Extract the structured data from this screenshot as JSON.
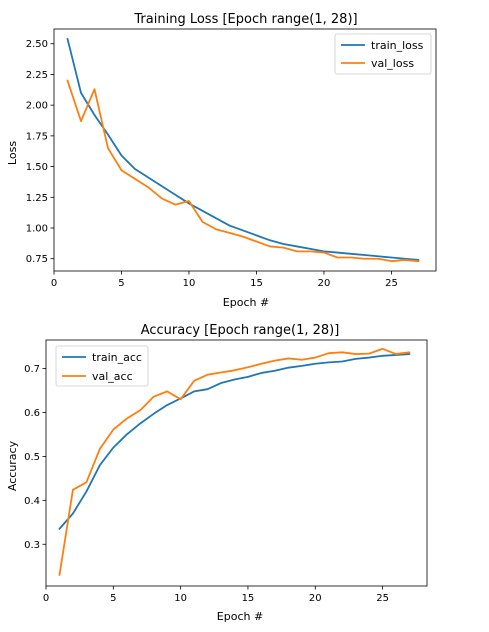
{
  "chart_data": [
    {
      "type": "line",
      "title": "Training Loss [Epoch range(1, 28)]",
      "xlabel": "Epoch #",
      "ylabel": "Loss",
      "xlim": [
        0,
        28.3
      ],
      "ylim": [
        0.65,
        2.62
      ],
      "xticks": [
        0,
        5,
        10,
        15,
        20,
        25
      ],
      "yticks": [
        0.75,
        1.0,
        1.25,
        1.5,
        1.75,
        2.0,
        2.25,
        2.5
      ],
      "ytick_labels": [
        "0.75",
        "1.00",
        "1.25",
        "1.50",
        "1.75",
        "2.00",
        "2.25",
        "2.50"
      ],
      "legend_position": "upper right",
      "grid": false,
      "x": [
        1,
        2,
        3,
        4,
        5,
        6,
        7,
        8,
        9,
        10,
        11,
        12,
        13,
        14,
        15,
        16,
        17,
        18,
        19,
        20,
        21,
        22,
        23,
        24,
        25,
        26,
        27
      ],
      "series": [
        {
          "name": "train_loss",
          "color": "#1f77b4",
          "values": [
            2.54,
            2.1,
            1.92,
            1.76,
            1.59,
            1.48,
            1.41,
            1.34,
            1.27,
            1.2,
            1.14,
            1.08,
            1.02,
            0.98,
            0.94,
            0.9,
            0.87,
            0.85,
            0.83,
            0.81,
            0.8,
            0.79,
            0.78,
            0.77,
            0.76,
            0.75,
            0.74
          ]
        },
        {
          "name": "val_loss",
          "color": "#ff7f0e",
          "values": [
            2.2,
            1.87,
            2.13,
            1.65,
            1.47,
            1.4,
            1.33,
            1.24,
            1.19,
            1.22,
            1.05,
            0.99,
            0.96,
            0.93,
            0.89,
            0.85,
            0.84,
            0.81,
            0.81,
            0.8,
            0.76,
            0.76,
            0.75,
            0.75,
            0.73,
            0.74,
            0.73
          ]
        }
      ]
    },
    {
      "type": "line",
      "title": "Accuracy [Epoch range(1, 28)]",
      "xlabel": "Epoch #",
      "ylabel": "Accuracy",
      "xlim": [
        0,
        28.3
      ],
      "ylim": [
        0.205,
        0.765
      ],
      "xticks": [
        0,
        5,
        10,
        15,
        20,
        25
      ],
      "yticks": [
        0.3,
        0.4,
        0.5,
        0.6,
        0.7
      ],
      "ytick_labels": [
        "0.3",
        "0.4",
        "0.5",
        "0.6",
        "0.7"
      ],
      "legend_position": "upper left",
      "grid": false,
      "x": [
        1,
        2,
        3,
        4,
        5,
        6,
        7,
        8,
        9,
        10,
        11,
        12,
        13,
        14,
        15,
        16,
        17,
        18,
        19,
        20,
        21,
        22,
        23,
        24,
        25,
        26,
        27
      ],
      "series": [
        {
          "name": "train_acc",
          "color": "#1f77b4",
          "values": [
            0.335,
            0.37,
            0.42,
            0.48,
            0.52,
            0.55,
            0.575,
            0.597,
            0.617,
            0.632,
            0.648,
            0.653,
            0.667,
            0.675,
            0.681,
            0.69,
            0.695,
            0.702,
            0.706,
            0.711,
            0.714,
            0.716,
            0.722,
            0.725,
            0.729,
            0.731,
            0.733
          ]
        },
        {
          "name": "val_acc",
          "color": "#ff7f0e",
          "values": [
            0.23,
            0.424,
            0.441,
            0.517,
            0.561,
            0.586,
            0.605,
            0.636,
            0.648,
            0.63,
            0.672,
            0.686,
            0.691,
            0.696,
            0.703,
            0.711,
            0.718,
            0.723,
            0.72,
            0.725,
            0.735,
            0.737,
            0.733,
            0.734,
            0.745,
            0.733,
            0.737
          ]
        }
      ]
    }
  ]
}
